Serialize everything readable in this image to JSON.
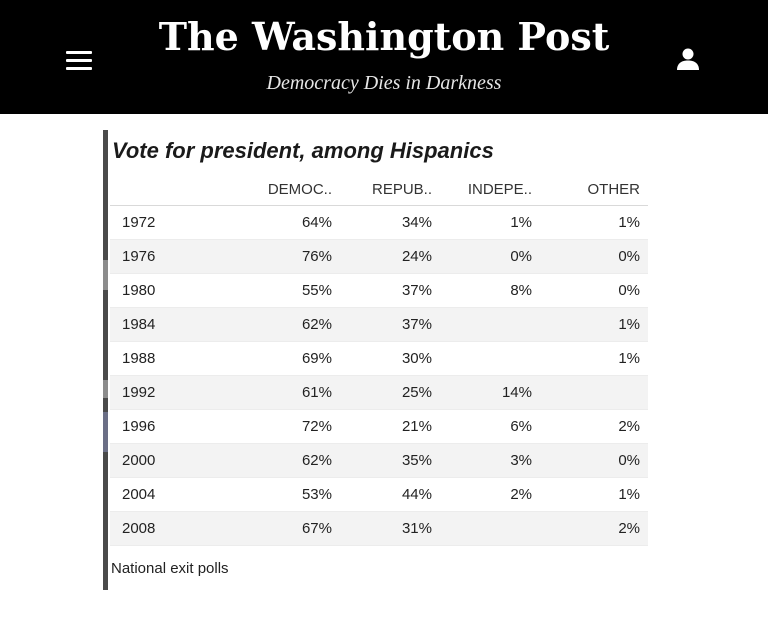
{
  "header": {
    "masthead": "The Washington Post",
    "tagline": "Democracy Dies in Darkness",
    "menu_icon": "hamburger-menu-icon",
    "user_icon": "user-account-icon",
    "colors": {
      "background": "#000000",
      "text": "#ffffff"
    }
  },
  "chart_data": {
    "type": "table",
    "title": "Vote for president, among Hispanics",
    "columns": [
      "",
      "DEMOC..",
      "REPUB..",
      "INDEPE..",
      "OTHER"
    ],
    "rows": [
      {
        "year": "1972",
        "dem": "64%",
        "rep": "34%",
        "ind": "1%",
        "other": "1%"
      },
      {
        "year": "1976",
        "dem": "76%",
        "rep": "24%",
        "ind": "0%",
        "other": "0%"
      },
      {
        "year": "1980",
        "dem": "55%",
        "rep": "37%",
        "ind": "8%",
        "other": "0%"
      },
      {
        "year": "1984",
        "dem": "62%",
        "rep": "37%",
        "ind": "",
        "other": "1%"
      },
      {
        "year": "1988",
        "dem": "69%",
        "rep": "30%",
        "ind": "",
        "other": "1%"
      },
      {
        "year": "1992",
        "dem": "61%",
        "rep": "25%",
        "ind": "14%",
        "other": ""
      },
      {
        "year": "1996",
        "dem": "72%",
        "rep": "21%",
        "ind": "6%",
        "other": "2%"
      },
      {
        "year": "2000",
        "dem": "62%",
        "rep": "35%",
        "ind": "3%",
        "other": "0%"
      },
      {
        "year": "2004",
        "dem": "53%",
        "rep": "44%",
        "ind": "2%",
        "other": "1%"
      },
      {
        "year": "2008",
        "dem": "67%",
        "rep": "31%",
        "ind": "",
        "other": "2%"
      }
    ],
    "source_note": "National exit polls"
  }
}
